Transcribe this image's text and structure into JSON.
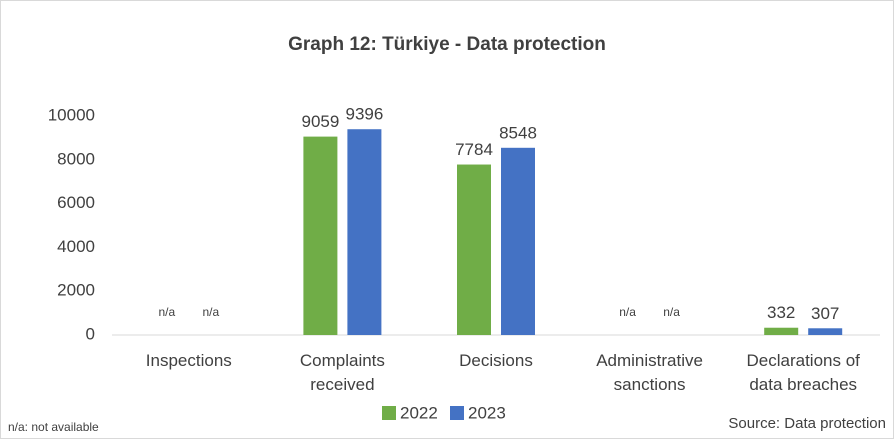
{
  "chart_data": {
    "type": "bar",
    "title": "Graph 12: Türkiye - Data protection",
    "categories": [
      "Inspections",
      "Complaints received",
      "Decisions",
      "Administrative sanctions",
      "Declarations of data breaches"
    ],
    "series": [
      {
        "name": "2022",
        "color": "#70ad47",
        "values": [
          null,
          9059,
          7784,
          null,
          332
        ],
        "value_labels": [
          "n/a",
          "9059",
          "7784",
          "n/a",
          "332"
        ]
      },
      {
        "name": "2023",
        "color": "#4472c4",
        "values": [
          null,
          9396,
          8548,
          null,
          307
        ],
        "value_labels": [
          "n/a",
          "9396",
          "8548",
          "n/a",
          "307"
        ]
      }
    ],
    "ylim": [
      0,
      10000
    ],
    "yticks": [
      0,
      2000,
      4000,
      6000,
      8000,
      10000
    ],
    "legend": "bottom",
    "footnote": "n/a:  not available",
    "source": "Source: Data protection"
  }
}
